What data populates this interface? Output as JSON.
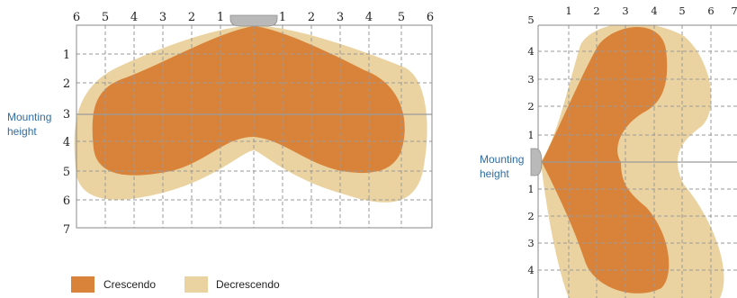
{
  "colors": {
    "crescendo": "#d9833a",
    "decrescendo": "#ead3a0",
    "mounting_label": "#2f6da3",
    "mounting_line": "#9a9a9a",
    "device": "#b9b9b9"
  },
  "left_diagram": {
    "top_ticks": [
      "6",
      "5",
      "4",
      "3",
      "2",
      "1",
      "1",
      "2",
      "3",
      "4",
      "5",
      "6"
    ],
    "left_ticks": [
      "1",
      "2",
      "3",
      "4",
      "5",
      "6",
      "7"
    ],
    "mounting_label_line1": "Mounting",
    "mounting_label_line2": "height"
  },
  "right_diagram": {
    "top_ticks": [
      "1",
      "2",
      "3",
      "4",
      "5",
      "6",
      "7"
    ],
    "left_ticks_upper": [
      "5",
      "4",
      "3",
      "2",
      "1"
    ],
    "left_ticks_lower": [
      "1",
      "2",
      "3",
      "4"
    ],
    "mounting_label_line1": "Mounting",
    "mounting_label_line2": "height"
  },
  "legend": [
    {
      "label": "Crescendo",
      "color_key": "crescendo"
    },
    {
      "label": "Decrescendo",
      "color_key": "decrescendo"
    }
  ]
}
